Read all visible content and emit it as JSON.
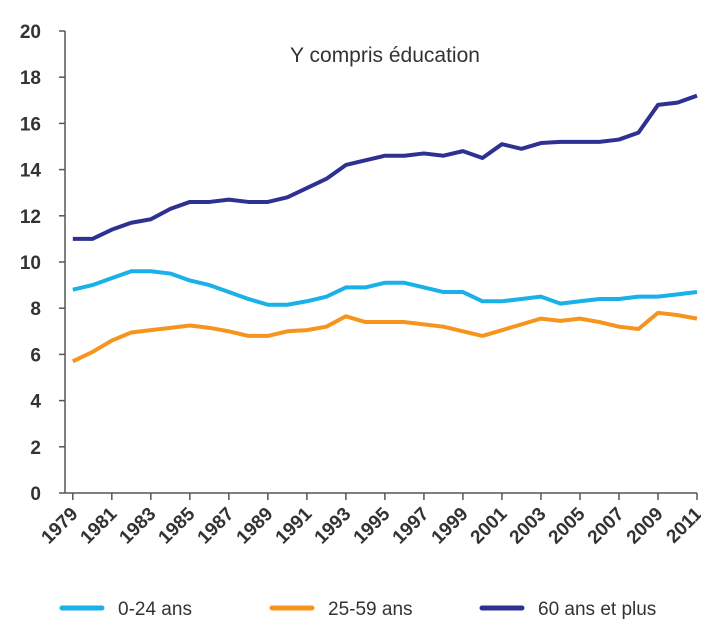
{
  "chart_data": {
    "type": "line",
    "annotation": "Y compris éducation",
    "x": [
      1979,
      1980,
      1981,
      1982,
      1983,
      1984,
      1985,
      1986,
      1987,
      1988,
      1989,
      1990,
      1991,
      1992,
      1993,
      1994,
      1995,
      1996,
      1997,
      1998,
      1999,
      2000,
      2001,
      2002,
      2003,
      2004,
      2005,
      2006,
      2007,
      2008,
      2009,
      2010,
      2011
    ],
    "series": [
      {
        "name": "0-24 ans",
        "color": "#1ab0e8",
        "values": [
          8.8,
          9.0,
          9.3,
          9.6,
          9.6,
          9.5,
          9.2,
          9.0,
          8.7,
          8.4,
          8.15,
          8.15,
          8.3,
          8.5,
          8.9,
          8.9,
          9.1,
          9.1,
          8.9,
          8.7,
          8.7,
          8.3,
          8.3,
          8.4,
          8.5,
          8.2,
          8.3,
          8.4,
          8.4,
          8.5,
          8.5,
          8.6,
          8.7
        ]
      },
      {
        "name": "25-59 ans",
        "color": "#f7941d",
        "values": [
          5.7,
          6.1,
          6.6,
          6.95,
          7.05,
          7.15,
          7.25,
          7.15,
          7.0,
          6.8,
          6.8,
          7.0,
          7.05,
          7.2,
          7.65,
          7.4,
          7.4,
          7.4,
          7.3,
          7.2,
          7.0,
          6.8,
          7.05,
          7.3,
          7.55,
          7.45,
          7.55,
          7.4,
          7.2,
          7.1,
          7.8,
          7.7,
          7.55
        ]
      },
      {
        "name": "60 ans et plus",
        "color": "#2e3192",
        "values": [
          11.0,
          11.0,
          11.4,
          11.7,
          11.85,
          12.3,
          12.6,
          12.6,
          12.7,
          12.6,
          12.6,
          12.8,
          13.2,
          13.6,
          14.2,
          14.4,
          14.6,
          14.6,
          14.7,
          14.6,
          14.8,
          14.5,
          15.1,
          14.9,
          15.15,
          15.2,
          15.2,
          15.2,
          15.3,
          15.6,
          16.8,
          16.9,
          17.2
        ]
      }
    ],
    "xlim": [
      1978.6,
      2011
    ],
    "xticks": [
      1979,
      1981,
      1983,
      1985,
      1987,
      1989,
      1991,
      1993,
      1995,
      1997,
      1999,
      2001,
      2003,
      2005,
      2007,
      2009,
      2011
    ],
    "ylim": [
      0,
      20
    ],
    "yticks": [
      0,
      2,
      4,
      6,
      8,
      10,
      12,
      14,
      16,
      18,
      20
    ],
    "legend": "bottom"
  }
}
